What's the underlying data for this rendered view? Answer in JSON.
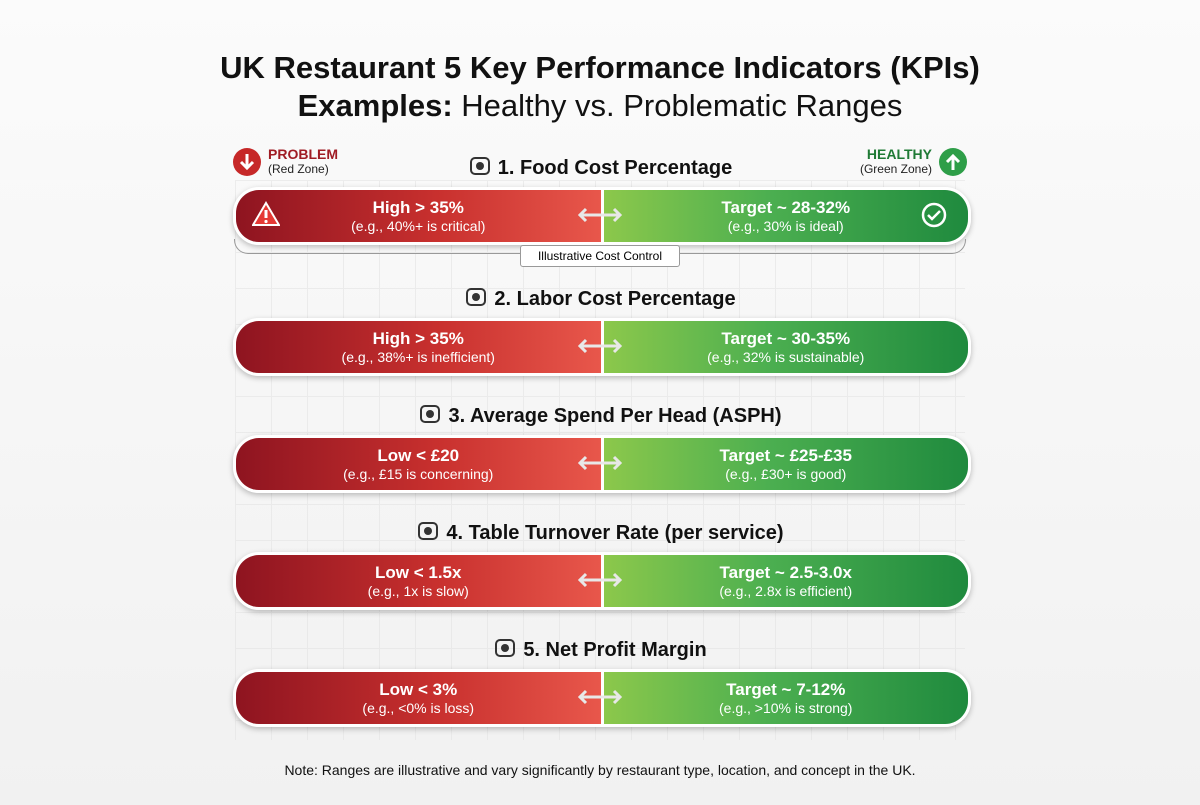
{
  "header": {
    "title_line1": "UK Restaurant 5 Key Performance Indicators (KPIs)",
    "title_line2_bold": "Examples:",
    "title_line2_rest": "Healthy vs. Problematic Ranges"
  },
  "legend": {
    "problem": {
      "label": "PROBLEM",
      "sub": "(Red Zone)"
    },
    "healthy": {
      "label": "HEALTHY",
      "sub": "(Green Zone)"
    }
  },
  "kpis": [
    {
      "title": "1. Food Cost Percentage",
      "problem": {
        "label": "High > 35%",
        "example": "(e.g., 40%+ is critical)"
      },
      "healthy": {
        "label": "Target ~ 28-32%",
        "example": "(e.g., 30% is ideal)"
      },
      "caption": "Illustrative Cost Control"
    },
    {
      "title": "2. Labor Cost Percentage",
      "problem": {
        "label": "High > 35%",
        "example": "(e.g., 38%+ is inefficient)"
      },
      "healthy": {
        "label": "Target ~ 30-35%",
        "example": "(e.g., 32% is sustainable)"
      }
    },
    {
      "title": "3. Average Spend Per Head (ASPH)",
      "problem": {
        "label": "Low < £20",
        "example": "(e.g., £15 is concerning)"
      },
      "healthy": {
        "label": "Target ~ £25-£35",
        "example": "(e.g., £30+ is good)"
      }
    },
    {
      "title": "4. Table Turnover Rate (per service)",
      "problem": {
        "label": "Low < 1.5x",
        "example": "(e.g., 1x is slow)"
      },
      "healthy": {
        "label": "Target ~ 2.5-3.0x",
        "example": "(e.g., 2.8x is efficient)"
      }
    },
    {
      "title": "5. Net Profit Margin",
      "problem": {
        "label": "Low < 3%",
        "example": "(e.g., <0% is loss)"
      },
      "healthy": {
        "label": "Target ~ 7-12%",
        "example": "(e.g., >10% is strong)"
      }
    }
  ],
  "note": "Note: Ranges are illustrative and vary significantly by restaurant type, location, and concept in the UK."
}
